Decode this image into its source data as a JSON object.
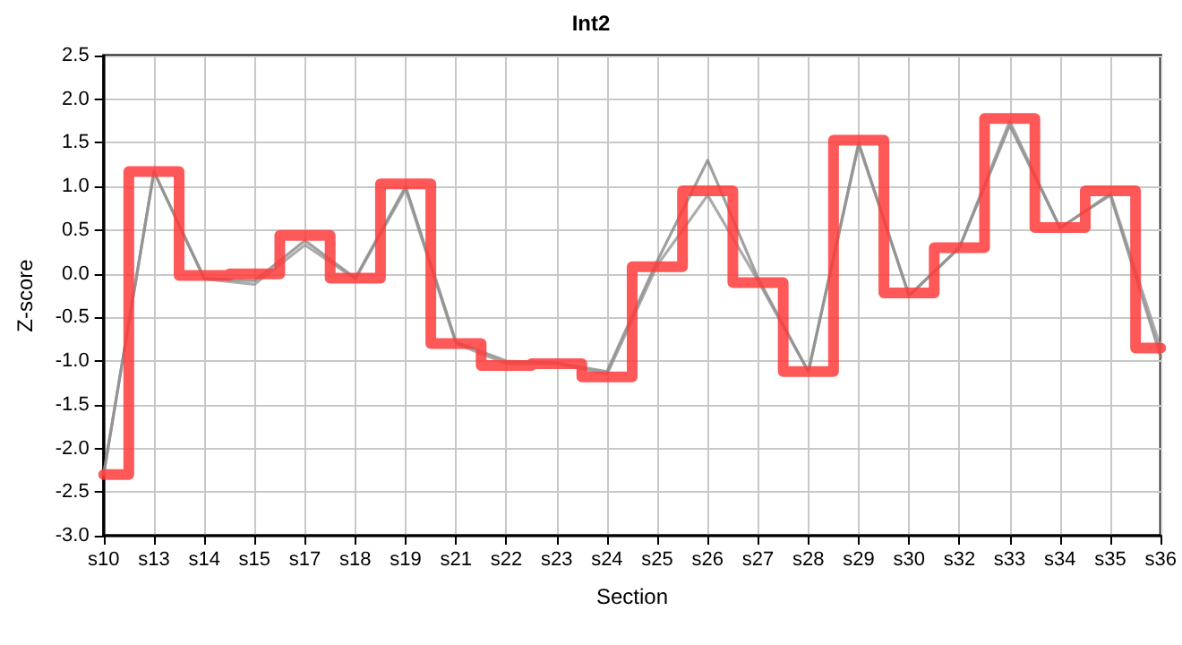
{
  "chart_data": {
    "type": "line",
    "title": "Int2",
    "xlabel": "Section",
    "ylabel": "Z-score",
    "categories": [
      "s10",
      "s13",
      "s14",
      "s15",
      "s17",
      "s18",
      "s19",
      "s21",
      "s22",
      "s23",
      "s24",
      "s25",
      "s26",
      "s27",
      "s28",
      "s29",
      "s30",
      "s32",
      "s33",
      "s34",
      "s35",
      "s36"
    ],
    "series": [
      {
        "color": "#808080",
        "values": [
          -2.3,
          1.17,
          -0.05,
          -0.08,
          0.38,
          -0.05,
          1.0,
          -0.78,
          -1.0,
          -1.02,
          -1.12,
          0.15,
          1.3,
          -0.05,
          -1.12,
          1.5,
          -0.25,
          0.3,
          1.7,
          0.53,
          0.9,
          -0.95
        ]
      },
      {
        "color": "#909090",
        "values": [
          -2.3,
          1.17,
          -0.06,
          -0.12,
          0.33,
          -0.06,
          0.97,
          -0.8,
          -1.03,
          -1.03,
          -1.15,
          0.1,
          0.9,
          -0.08,
          -1.12,
          1.48,
          -0.25,
          0.3,
          1.75,
          0.52,
          0.92,
          -0.85
        ]
      },
      {
        "type": "step",
        "color": "#ff3b3b",
        "values": [
          -2.3,
          1.17,
          -0.02,
          0.0,
          0.44,
          -0.05,
          1.03,
          -0.8,
          -1.05,
          -1.03,
          -1.18,
          0.08,
          0.95,
          -0.1,
          -1.12,
          1.53,
          -0.22,
          0.3,
          1.78,
          0.53,
          0.95,
          -0.85
        ]
      }
    ],
    "ylim": [
      -3.0,
      2.5
    ],
    "yticks": [
      {
        "value": -3,
        "label": "-3.0"
      },
      {
        "value": -2.5,
        "label": "-2.5"
      },
      {
        "value": -2,
        "label": "-2.0"
      },
      {
        "value": -1.5,
        "label": "-1.5"
      },
      {
        "value": -1,
        "label": "-1.0"
      },
      {
        "value": -0.5,
        "label": "-0.5"
      },
      {
        "value": 0,
        "label": "0.0"
      },
      {
        "value": 0.5,
        "label": "0.5"
      },
      {
        "value": 1,
        "label": "1.0"
      },
      {
        "value": 1.5,
        "label": "1.5"
      },
      {
        "value": 2,
        "label": "2.0"
      },
      {
        "value": 2.5,
        "label": "2.5"
      }
    ],
    "grid": true,
    "marker": "none",
    "line_style": "solid"
  }
}
